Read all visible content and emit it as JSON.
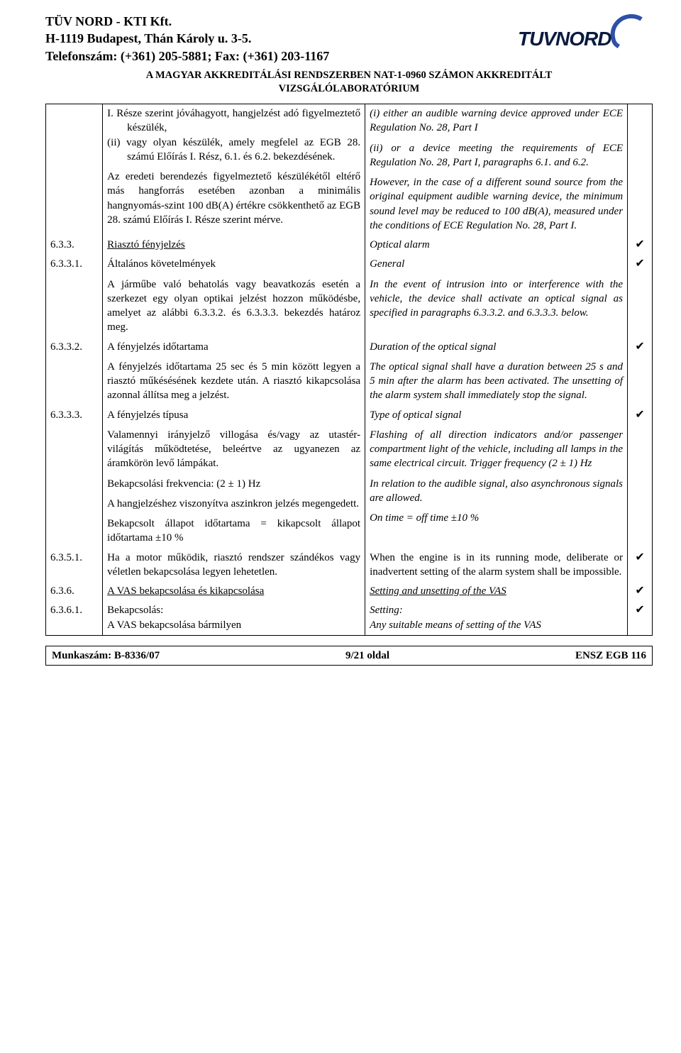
{
  "header": {
    "line1": "TÜV NORD - KTI Kft.",
    "line2": "H-1119 Budapest, Thán Károly u. 3-5.",
    "line3": "Telefonszám: (+361) 205-5881; Fax: (+361) 203-1167",
    "accr1": "A MAGYAR AKKREDITÁLÁSI RENDSZERBEN NAT-1-0960 SZÁMON AKKREDITÁLT",
    "accr2": "VIZSGÁLÓLABORATÓRIUM",
    "logo_text": "TUVNORD"
  },
  "colors": {
    "text": "#000000",
    "border": "#000000",
    "logo_dark": "#0a1a3f",
    "logo_ring": "#2f50a9",
    "check_glyph": "✔"
  },
  "rows": [
    {
      "num": "",
      "hu_parts": [
        {
          "cls": "hang just",
          "text": "      I. Része szerint jóváhagyott, hangjelzést adó figyelmeztető készülék,"
        },
        {
          "cls": "hang just",
          "text": "(ii) vagy olyan készülék, amely megfelel az EGB 28. számú Előírás I. Rész, 6.1. és 6.2. bekezdésének."
        },
        {
          "cls": "just mt",
          "text": "Az eredeti berendezés figyelmeztető készülékétől eltérő más hangforrás esetében azonban a minimális hangnyomás-szint 100 dB(A) értékre csökkenthető az EGB 28. számú Előírás I. Része szerint mérve."
        }
      ],
      "en_parts": [
        {
          "cls": "em just",
          "text": "(i) either an audible warning device approved under ECE Regulation No. 28, Part I"
        },
        {
          "cls": "em just mt",
          "text": "(ii) or a device meeting the requirements of ECE Regulation No. 28, Part I, paragraphs 6.1. and 6.2."
        },
        {
          "cls": "em just mt",
          "text": "However, in the case of a different sound source from the original equipment audible warning device, the minimum sound level may be reduced to 100 dB(A), measured under the conditions of ECE Regulation No. 28, Part I."
        }
      ],
      "chk": "",
      "top": true
    },
    {
      "num": "6.3.3.",
      "hu_parts": [
        {
          "cls": "underline",
          "text": "Riasztó fényjelzés"
        }
      ],
      "en_parts": [
        {
          "cls": "em",
          "text": "Optical alarm"
        }
      ],
      "chk": "✔"
    },
    {
      "num": "6.3.3.1.",
      "hu_parts": [
        {
          "cls": "",
          "text": "Általános követelmények"
        },
        {
          "cls": "just mt",
          "text": "A járműbe való behatolás vagy beavatkozás esetén a szerkezet egy olyan optikai jelzést hozzon működésbe, amelyet az alábbi 6.3.3.2. és 6.3.3.3. bekezdés határoz meg."
        }
      ],
      "en_parts": [
        {
          "cls": "em",
          "text": "General"
        },
        {
          "cls": "em just mt",
          "text": "In the event of intrusion into or interference with the vehicle, the device shall activate an optical signal as specified in paragraphs 6.3.3.2. and 6.3.3.3. below."
        }
      ],
      "chk": "✔"
    },
    {
      "num": "6.3.3.2.",
      "hu_parts": [
        {
          "cls": "",
          "text": "A fényjelzés időtartama"
        },
        {
          "cls": "just mt",
          "text": "A fényjelzés időtartama 25 sec és 5 min között legyen a riasztó műkésésének kezdete után. A riasztó kikapcsolása azonnal állítsa meg a jelzést."
        }
      ],
      "en_parts": [
        {
          "cls": "em",
          "text": "Duration of the optical signal"
        },
        {
          "cls": "em just mt",
          "text": "The optical signal shall have a duration between 25 s and 5 min after the alarm has been activated. The unsetting of the alarm system shall immediately stop the signal."
        }
      ],
      "chk": "✔"
    },
    {
      "num": "6.3.3.3.",
      "hu_parts": [
        {
          "cls": "",
          "text": "A fényjelzés típusa"
        },
        {
          "cls": "just mt",
          "text": "Valamennyi irányjelző villogása és/vagy az utastér-világítás működtetése, beleértve az ugyanezen az áramkörön levő lámpákat."
        },
        {
          "cls": "mt",
          "text": "Bekapcsolási frekvencia: (2 ± 1) Hz"
        },
        {
          "cls": "just mt",
          "text": "A hangjelzéshez viszonyítva aszinkron jelzés megengedett."
        },
        {
          "cls": "just mt",
          "text": "Bekapcsolt állapot időtartama = kikapcsolt állapot időtartama ±10 %"
        }
      ],
      "en_parts": [
        {
          "cls": "em",
          "text": "Type of optical signal"
        },
        {
          "cls": "em just mt",
          "text": "Flashing of all direction indicators and/or passenger compartment light of the vehicle, including all lamps in the same electrical circuit. Trigger frequency (2 ± 1) Hz"
        },
        {
          "cls": "em just mt",
          "text": "In relation to the audible signal, also asynchronous signals are allowed."
        },
        {
          "cls": "em mt",
          "text": "On time = off time ±10 %"
        }
      ],
      "chk": "✔"
    },
    {
      "num": "6.3.5.1.",
      "hu_parts": [
        {
          "cls": "just",
          "text": "Ha a motor működik, riasztó rendszer szándékos vagy véletlen bekapcsolása legyen lehetetlen."
        }
      ],
      "en_parts": [
        {
          "cls": "just",
          "text": "When the engine is in its running mode, deliberate or inadvertent setting of the alarm system shall be impossible."
        }
      ],
      "chk": "✔"
    },
    {
      "num": "6.3.6.",
      "hu_parts": [
        {
          "cls": "underline",
          "text": "A VAS bekapcsolása és kikapcsolása"
        }
      ],
      "en_parts": [
        {
          "cls": "em underline",
          "text": "Setting and unsetting of the VAS"
        }
      ],
      "chk": "✔"
    },
    {
      "num": "6.3.6.1.",
      "hu_parts": [
        {
          "cls": "",
          "text": "Bekapcsolás:"
        },
        {
          "cls": "",
          "text": "A VAS bekapcsolása bármilyen"
        }
      ],
      "en_parts": [
        {
          "cls": "em",
          "text": "Setting:"
        },
        {
          "cls": "em",
          "text": "Any suitable means of setting of the VAS"
        }
      ],
      "chk": "✔",
      "bot": true
    }
  ],
  "footer": {
    "left": "Munkaszám: B-8336/07",
    "center": "9/21 oldal",
    "right": "ENSZ EGB 116"
  }
}
